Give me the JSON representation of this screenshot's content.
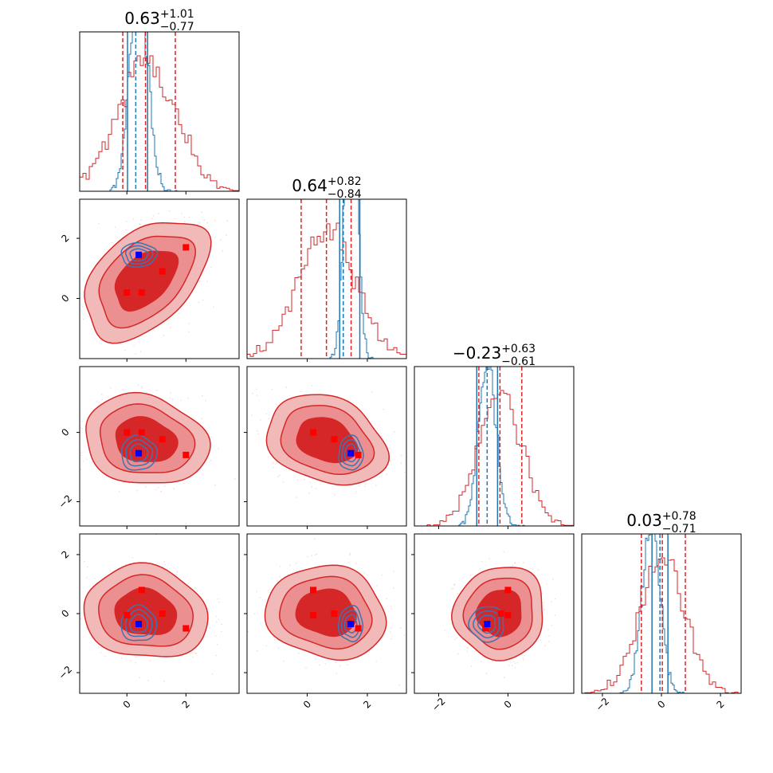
{
  "chart_data": {
    "type": "corner",
    "n_params": 4,
    "colors": {
      "posterior_a": "#d62728",
      "posterior_a_fill_light": "#f2b9b9",
      "posterior_a_fill_mid": "#ec8f90",
      "posterior_a_fill_dark": "#d62728",
      "posterior_b": "#1f77b4",
      "posterior_b_contour": "#3b74b4",
      "marker_a": "#ff0000",
      "marker_b": "#0000ff"
    },
    "axis_ranges": [
      [
        -1.6,
        3.8
      ],
      [
        -2.0,
        3.3
      ],
      [
        -2.7,
        1.9
      ],
      [
        -2.7,
        2.7
      ]
    ],
    "tick_values": [
      [
        0,
        2
      ],
      [
        0,
        2
      ],
      [
        -2,
        0
      ],
      [
        -2,
        0,
        2
      ]
    ],
    "tick_labels": [
      [
        "0",
        "2"
      ],
      [
        "0",
        "2"
      ],
      [
        "−2",
        "0"
      ],
      [
        "−2",
        "0",
        "2"
      ]
    ],
    "titles": [
      {
        "value": "0.63",
        "plus": "+1.01",
        "minus": "−0.77"
      },
      {
        "value": "0.64",
        "plus": "+0.82",
        "minus": "−0.84"
      },
      {
        "value": "−0.23",
        "plus": "+0.63",
        "minus": "−0.61"
      },
      {
        "value": "0.03",
        "plus": "+0.78",
        "minus": "−0.71"
      }
    ],
    "red_quantiles": [
      [
        -0.14,
        0.63,
        1.64
      ],
      [
        -0.2,
        0.64,
        1.46
      ],
      [
        -0.84,
        -0.23,
        0.4
      ],
      [
        -0.68,
        0.03,
        0.81
      ]
    ],
    "blue_quantiles": [
      [
        0.02,
        0.3,
        0.7
      ],
      [
        1.08,
        1.2,
        1.75
      ],
      [
        -0.9,
        -0.6,
        -0.3
      ],
      [
        -0.32,
        -0.05,
        0.22
      ]
    ],
    "red_markers": [
      [
        0.0,
        0.2,
        0.0,
        -0.05
      ],
      [
        0.5,
        0.2,
        0.0,
        0.8
      ],
      [
        1.2,
        0.9,
        -0.2,
        0.0
      ],
      [
        2.0,
        1.7,
        -0.65,
        -0.5
      ]
    ],
    "blue_marker": [
      0.4,
      1.45,
      -0.6,
      -0.35
    ],
    "red_means": [
      0.63,
      0.64,
      -0.23,
      0.03
    ],
    "red_sigmas": [
      1.0,
      0.95,
      0.62,
      0.75
    ],
    "blue_means": [
      0.4,
      1.45,
      -0.6,
      -0.35
    ],
    "blue_sigmas": [
      0.3,
      0.2,
      0.25,
      0.3
    ],
    "correlations": [
      [
        0,
        1,
        0.45
      ],
      [
        0,
        2,
        -0.15
      ],
      [
        0,
        3,
        -0.1
      ],
      [
        1,
        2,
        -0.25
      ],
      [
        1,
        3,
        -0.1
      ],
      [
        2,
        3,
        0.05
      ]
    ]
  }
}
